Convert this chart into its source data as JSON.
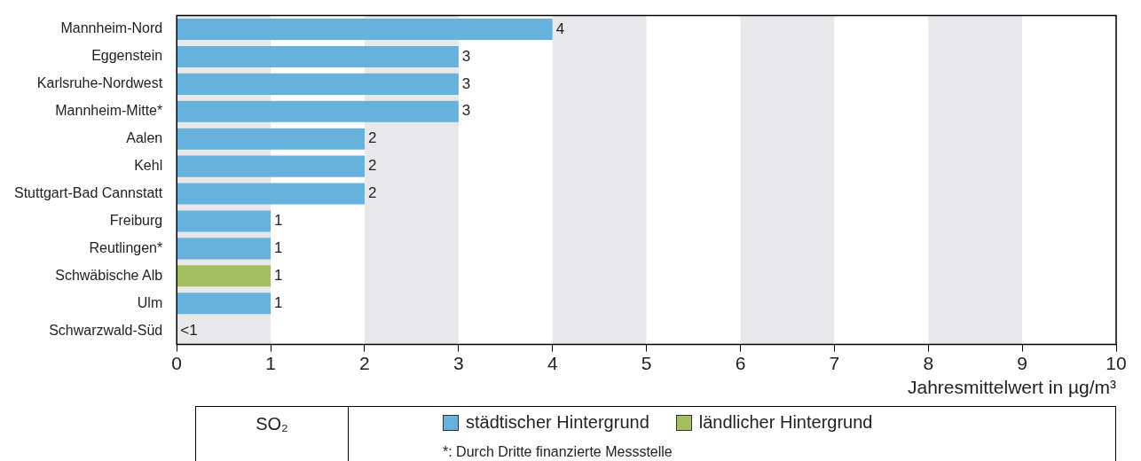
{
  "chart_data": {
    "type": "bar",
    "orientation": "horizontal",
    "title": "SO₂",
    "xlabel": "Jahresmittelwert in µg/m³",
    "categories": [
      "Mannheim-Nord",
      "Eggenstein",
      "Karlsruhe-Nordwest",
      "Mannheim-Mitte*",
      "Aalen",
      "Kehl",
      "Stuttgart-Bad Cannstatt",
      "Freiburg",
      "Reutlingen*",
      "Schwäbische Alb",
      "Ulm",
      "Schwarzwald-Süd"
    ],
    "series": [
      {
        "name": "städtischer Hintergrund",
        "color": "#67b2dc",
        "values": [
          4,
          3,
          3,
          3,
          2,
          2,
          2,
          1,
          1,
          null,
          1,
          null
        ],
        "value_labels": [
          "4",
          "3",
          "3",
          "3",
          "2",
          "2",
          "2",
          "1",
          "1",
          null,
          "1",
          null
        ]
      },
      {
        "name": "ländlicher Hintergrund",
        "color": "#a4bf5f",
        "values": [
          null,
          null,
          null,
          null,
          null,
          null,
          null,
          null,
          null,
          1,
          null,
          null
        ],
        "value_labels": [
          null,
          null,
          null,
          null,
          null,
          null,
          null,
          null,
          null,
          "1",
          null,
          "<1"
        ]
      }
    ],
    "xlim": [
      0,
      10
    ],
    "xticks": [
      0,
      1,
      2,
      3,
      4,
      5,
      6,
      7,
      8,
      9,
      10
    ],
    "grid": false,
    "legend": "bottom",
    "bands": [
      {
        "axis": "x",
        "from": 0,
        "to": 1,
        "color": "#e8e8eb"
      },
      {
        "axis": "x",
        "from": 2,
        "to": 3,
        "color": "#e8e8eb"
      },
      {
        "axis": "x",
        "from": 4,
        "to": 5,
        "color": "#e8e8eb"
      },
      {
        "axis": "x",
        "from": 6,
        "to": 7,
        "color": "#e8e8eb"
      },
      {
        "axis": "x",
        "from": 8,
        "to": 9,
        "color": "#e8e8eb"
      }
    ],
    "annotations": [
      "*: Durch Dritte finanzierte Messstelle"
    ]
  }
}
